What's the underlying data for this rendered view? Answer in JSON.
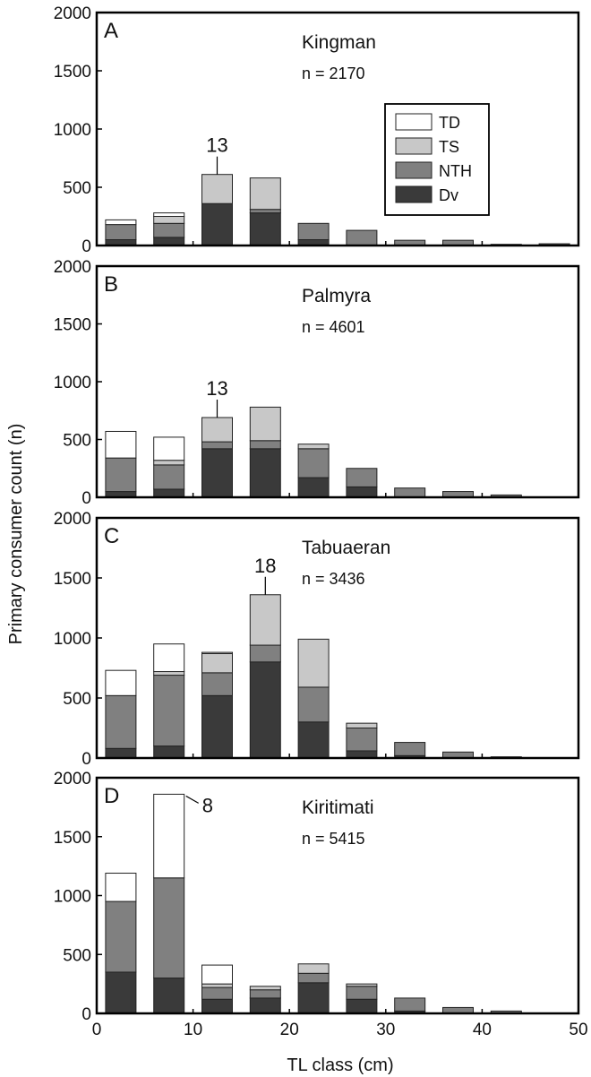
{
  "figure": {
    "ylabel": "Primary consumer count (n)",
    "xlabel": "TL class (cm)"
  },
  "legend": [
    {
      "name": "TD",
      "color": "#ffffff"
    },
    {
      "name": "TS",
      "color": "#c8c8c8"
    },
    {
      "name": "NTH",
      "color": "#808080"
    },
    {
      "name": "Dv",
      "color": "#3a3a3a"
    }
  ],
  "chart_data": [
    {
      "type": "bar",
      "stacked": true,
      "panel": "A",
      "title": "Kingman",
      "n_label": "n = 2170",
      "x": [
        5,
        10,
        15,
        20,
        25,
        30,
        35,
        40,
        45,
        50
      ],
      "series": [
        {
          "name": "Dv",
          "values": [
            50,
            70,
            360,
            280,
            50,
            0,
            0,
            0,
            0,
            0
          ]
        },
        {
          "name": "NTH",
          "values": [
            130,
            120,
            0,
            30,
            140,
            130,
            45,
            45,
            10,
            15
          ]
        },
        {
          "name": "TS",
          "values": [
            0,
            60,
            250,
            270,
            0,
            0,
            0,
            0,
            0,
            0
          ]
        },
        {
          "name": "TD",
          "values": [
            40,
            30,
            0,
            0,
            0,
            0,
            0,
            0,
            0,
            0
          ]
        }
      ],
      "annotation": {
        "text": "13",
        "x": 15
      },
      "xlim": [
        0,
        50
      ],
      "ylim": [
        0,
        2000
      ],
      "yticks": [
        0,
        500,
        1000,
        1500,
        2000
      ],
      "legend": "top-right"
    },
    {
      "type": "bar",
      "stacked": true,
      "panel": "B",
      "title": "Palmyra",
      "n_label": "n = 4601",
      "x": [
        5,
        10,
        15,
        20,
        25,
        30,
        35,
        40,
        45,
        50
      ],
      "series": [
        {
          "name": "Dv",
          "values": [
            50,
            70,
            420,
            420,
            170,
            90,
            0,
            0,
            0,
            0
          ]
        },
        {
          "name": "NTH",
          "values": [
            290,
            210,
            60,
            70,
            250,
            160,
            80,
            50,
            20,
            0
          ]
        },
        {
          "name": "TS",
          "values": [
            0,
            40,
            210,
            290,
            40,
            0,
            0,
            0,
            0,
            0
          ]
        },
        {
          "name": "TD",
          "values": [
            230,
            200,
            0,
            0,
            0,
            0,
            0,
            0,
            0,
            0
          ]
        }
      ],
      "annotation": {
        "text": "13",
        "x": 15
      },
      "xlim": [
        0,
        50
      ],
      "ylim": [
        0,
        2000
      ],
      "yticks": [
        0,
        500,
        1000,
        1500,
        2000
      ]
    },
    {
      "type": "bar",
      "stacked": true,
      "panel": "C",
      "title": "Tabuaeran",
      "n_label": "n = 3436",
      "x": [
        5,
        10,
        15,
        20,
        25,
        30,
        35,
        40,
        45,
        50
      ],
      "series": [
        {
          "name": "Dv",
          "values": [
            80,
            100,
            520,
            800,
            300,
            60,
            20,
            0,
            0,
            0
          ]
        },
        {
          "name": "NTH",
          "values": [
            440,
            590,
            190,
            140,
            290,
            190,
            110,
            50,
            10,
            0
          ]
        },
        {
          "name": "TS",
          "values": [
            0,
            30,
            160,
            420,
            400,
            40,
            0,
            0,
            0,
            0
          ]
        },
        {
          "name": "TD",
          "values": [
            210,
            230,
            10,
            0,
            0,
            0,
            0,
            0,
            0,
            0
          ]
        }
      ],
      "annotation": {
        "text": "18",
        "x": 20
      },
      "xlim": [
        0,
        50
      ],
      "ylim": [
        0,
        2000
      ],
      "yticks": [
        0,
        500,
        1000,
        1500,
        2000
      ]
    },
    {
      "type": "bar",
      "stacked": true,
      "panel": "D",
      "title": "Kiritimati",
      "n_label": "n = 5415",
      "x": [
        5,
        10,
        15,
        20,
        25,
        30,
        35,
        40,
        45,
        50
      ],
      "series": [
        {
          "name": "Dv",
          "values": [
            350,
            300,
            120,
            130,
            260,
            120,
            20,
            0,
            0,
            0
          ]
        },
        {
          "name": "NTH",
          "values": [
            600,
            850,
            100,
            70,
            80,
            110,
            110,
            50,
            20,
            0
          ]
        },
        {
          "name": "TS",
          "values": [
            0,
            0,
            30,
            30,
            80,
            20,
            0,
            0,
            0,
            0
          ]
        },
        {
          "name": "TD",
          "values": [
            240,
            710,
            160,
            0,
            0,
            0,
            0,
            0,
            0,
            0
          ]
        }
      ],
      "annotation": {
        "text": "8",
        "x": 10
      },
      "xlim": [
        0,
        50
      ],
      "ylim": [
        0,
        2000
      ],
      "yticks": [
        0,
        500,
        1000,
        1500,
        2000
      ],
      "xticks": [
        0,
        10,
        20,
        30,
        40,
        50
      ]
    }
  ]
}
